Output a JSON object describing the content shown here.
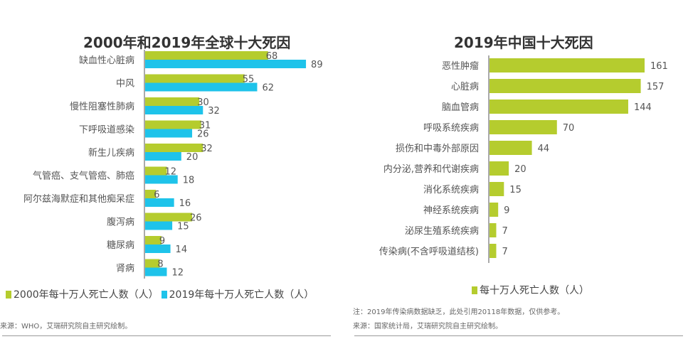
{
  "colors": {
    "green": "#b5cc2e",
    "blue": "#1ec3ea"
  },
  "chart_data": [
    {
      "type": "bar",
      "orientation": "horizontal",
      "title": "2000年和2019年全球十大死因",
      "categories": [
        "缺血性心脏病",
        "中风",
        "慢性阻塞性肺病",
        "下呼吸道感染",
        "新生儿疾病",
        "气管癌、支气管癌、肺癌",
        "阿尔兹海默症和其他痴呆症",
        "腹泻病",
        "糖尿病",
        "肾病"
      ],
      "series": [
        {
          "name": "2000年每十万人死亡人数（人）",
          "values": [
            68,
            55,
            30,
            31,
            32,
            12,
            6,
            26,
            9,
            8
          ]
        },
        {
          "name": "2019年每十万人死亡人数（人）",
          "values": [
            89,
            62,
            32,
            26,
            20,
            18,
            16,
            15,
            14,
            12
          ]
        }
      ],
      "legend": "bottom",
      "grid": false,
      "source": "来源：WHO，艾瑞研究院自主研究绘制。"
    },
    {
      "type": "bar",
      "orientation": "horizontal",
      "title": "2019年中国十大死因",
      "categories": [
        "恶性肿瘤",
        "心脏病",
        "脑血管病",
        "呼吸系统疾病",
        "损伤和中毒外部原因",
        "内分泌,营养和代谢疾病",
        "消化系统疾病",
        "神经系统疾病",
        "泌尿生殖系统疾病",
        "传染病(不含呼吸道结核)"
      ],
      "series": [
        {
          "name": "每十万人死亡人数（人）",
          "values": [
            161,
            157,
            144,
            70,
            44,
            20,
            15,
            9,
            7,
            7
          ]
        }
      ],
      "legend": "bottom",
      "grid": false,
      "note": "注：2019年传染病数据缺乏，此处引用20118年数据，仅供参考。",
      "source": "来源：国家统计局，艾瑞研究院自主研究绘制。"
    }
  ]
}
